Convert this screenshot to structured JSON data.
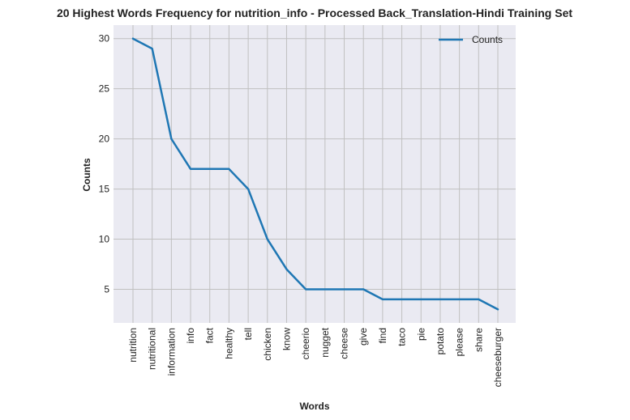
{
  "chart_data": {
    "type": "line",
    "title": "20 Highest Words Frequency for nutrition_info - Processed Back_Translation-Hindi Training Set",
    "xlabel": "Words",
    "ylabel": "Counts",
    "categories": [
      "nutrition",
      "nutritional",
      "information",
      "info",
      "fact",
      "healthy",
      "tell",
      "chicken",
      "know",
      "cheerio",
      "nugget",
      "cheese",
      "give",
      "find",
      "taco",
      "pie",
      "potato",
      "please",
      "share",
      "cheeseburger"
    ],
    "series": [
      {
        "name": "Counts",
        "values": [
          30,
          29,
          20,
          17,
          17,
          17,
          15,
          10,
          7,
          5,
          5,
          5,
          5,
          4,
          4,
          4,
          4,
          4,
          4,
          3
        ],
        "color": "#1f77b4"
      }
    ],
    "yticks": [
      5,
      10,
      15,
      20,
      25,
      30
    ],
    "ylim": [
      1.65,
      31.35
    ],
    "grid": true,
    "legend_position": "top-right",
    "background": "#eaeaf2",
    "grid_color": "#c0c0c0"
  }
}
